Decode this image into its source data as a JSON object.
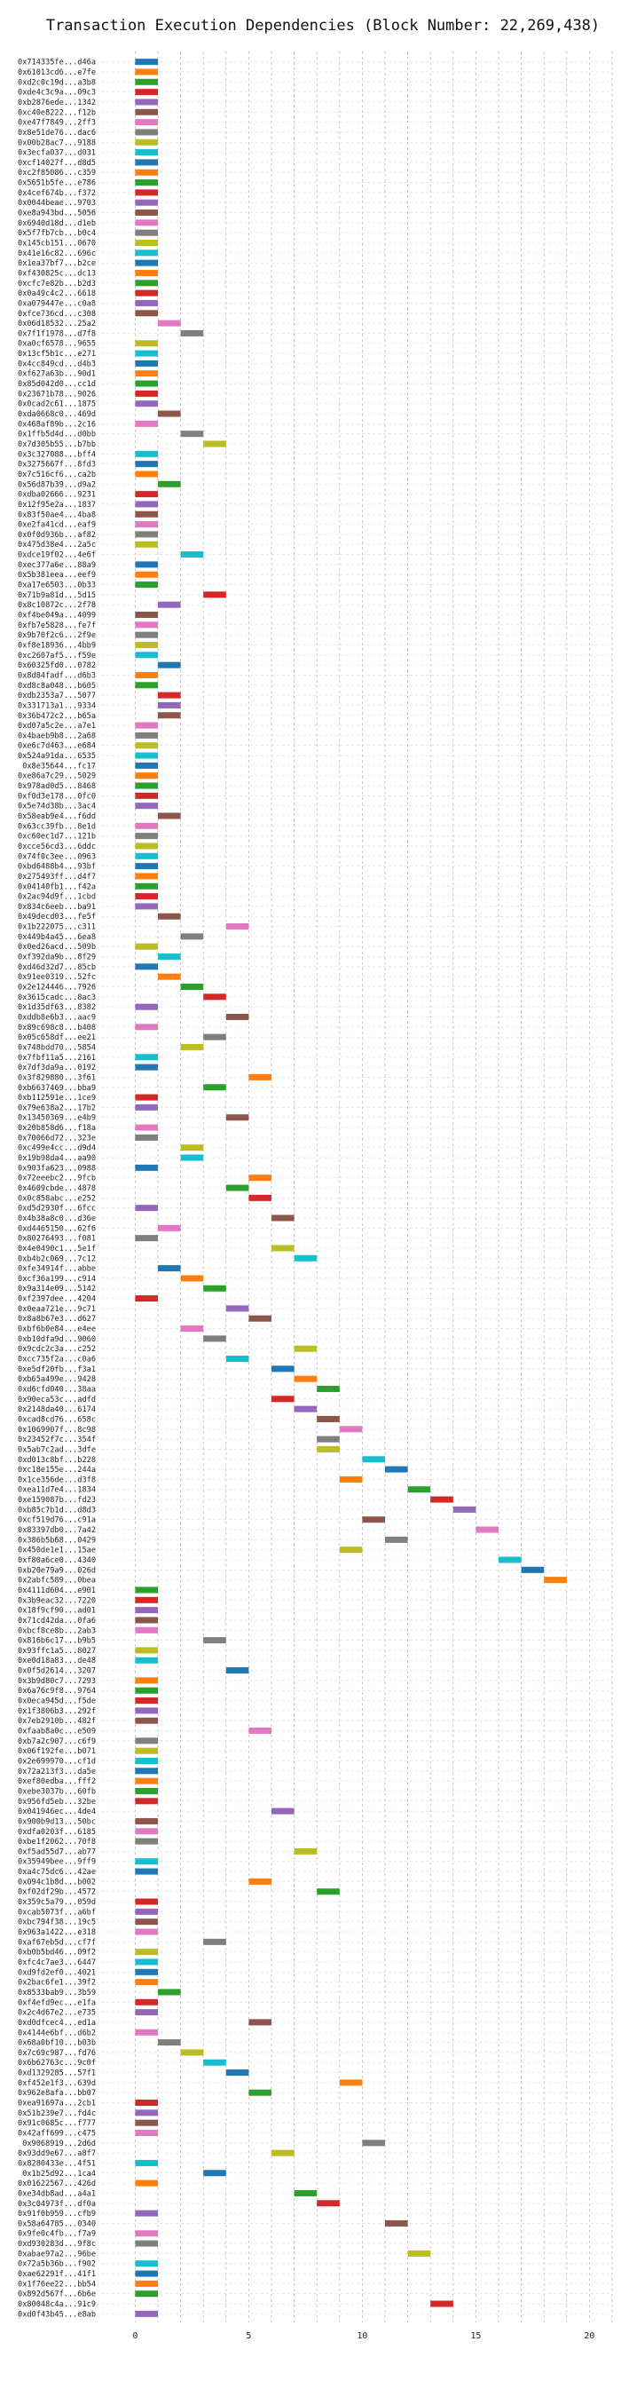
{
  "chart_data": {
    "type": "gantt",
    "title": "Transaction Execution Dependencies (Block Number: 22,269,438)",
    "xlabel": "",
    "ylabel": "",
    "xlim": [
      -1.5,
      21
    ],
    "x_ticks": [
      0,
      5,
      10,
      15,
      20
    ],
    "grid": true,
    "bar_duration": 1,
    "palette": [
      "#1f77b4",
      "#ff7f0e",
      "#2ca02c",
      "#d62728",
      "#9467bd",
      "#8c564b",
      "#e377c2",
      "#7f7f7f",
      "#bcbd22",
      "#17becf"
    ],
    "transactions": [
      {
        "label": "0x714335fe...d46a",
        "start": 0
      },
      {
        "label": "0x61013cd6...e7fe",
        "start": 0
      },
      {
        "label": "0xd2c0c19d...a3b8",
        "start": 0
      },
      {
        "label": "0xde4c3c9a...09c3",
        "start": 0
      },
      {
        "label": "0xb2876ede...1342",
        "start": 0
      },
      {
        "label": "0xc40e8222...f12b",
        "start": 0
      },
      {
        "label": "0xe47f7849...2ff3",
        "start": 0
      },
      {
        "label": "0x8e51de76...dac6",
        "start": 0
      },
      {
        "label": "0x00b28ac7...9188",
        "start": 0
      },
      {
        "label": "0x3ecfa037...d031",
        "start": 0
      },
      {
        "label": "0xcf14027f...d8d5",
        "start": 0
      },
      {
        "label": "0xc2f85086...c359",
        "start": 0
      },
      {
        "label": "0x5651b5fe...e786",
        "start": 0
      },
      {
        "label": "0x4cef674b...f372",
        "start": 0
      },
      {
        "label": "0x0044beae...9703",
        "start": 0
      },
      {
        "label": "0xe8a943bd...5056",
        "start": 0
      },
      {
        "label": "0x6940d18d...d1eb",
        "start": 0
      },
      {
        "label": "0x5f7fb7cb...b0c4",
        "start": 0
      },
      {
        "label": "0x145cb151...0670",
        "start": 0
      },
      {
        "label": "0x41e16c82...696c",
        "start": 0
      },
      {
        "label": "0x1ea37bf7...b2ce",
        "start": 0
      },
      {
        "label": "0xf430825c...dc13",
        "start": 0
      },
      {
        "label": "0xcfc7e82b...b2d3",
        "start": 0
      },
      {
        "label": "0x0a49c4c2...6618",
        "start": 0
      },
      {
        "label": "0xa079447e...c0a8",
        "start": 0
      },
      {
        "label": "0xfce736cd...c308",
        "start": 0
      },
      {
        "label": "0x06d18532...25a2",
        "start": 1
      },
      {
        "label": "0x7f1f1978...d7f8",
        "start": 2
      },
      {
        "label": "0xa0cf6578...9655",
        "start": 0
      },
      {
        "label": "0x13cf5b1c...e271",
        "start": 0
      },
      {
        "label": "0x4cc849cd...d4b3",
        "start": 0
      },
      {
        "label": "0xf627a63b...90d1",
        "start": 0
      },
      {
        "label": "0x85d042d0...cc1d",
        "start": 0
      },
      {
        "label": "0x23671b78...9026",
        "start": 0
      },
      {
        "label": "0x0cad2c61...1875",
        "start": 0
      },
      {
        "label": "0xda0668c0...469d",
        "start": 1
      },
      {
        "label": "0x468af89b...2c16",
        "start": 0
      },
      {
        "label": "0x1ffb5d4d...d0bb",
        "start": 2
      },
      {
        "label": "0x7d305b55...b7bb",
        "start": 3
      },
      {
        "label": "0x3c327088...bff4",
        "start": 0
      },
      {
        "label": "0x3275667f...8fd3",
        "start": 0
      },
      {
        "label": "0x7c516cf6...ca2b",
        "start": 0
      },
      {
        "label": "0x56d87b39...d9a2",
        "start": 1
      },
      {
        "label": "0xdba02666...9231",
        "start": 0
      },
      {
        "label": "0x12f95e2a...1837",
        "start": 0
      },
      {
        "label": "0x83f50ae4...4ba8",
        "start": 0
      },
      {
        "label": "0xe2fa41cd...eaf9",
        "start": 0
      },
      {
        "label": "0x0f0d936b...af82",
        "start": 0
      },
      {
        "label": "0x475d38e4...2a5c",
        "start": 0
      },
      {
        "label": "0xdce19f02...4e6f",
        "start": 2
      },
      {
        "label": "0xec377a6e...88a9",
        "start": 0
      },
      {
        "label": "0x5b381eea...eef9",
        "start": 0
      },
      {
        "label": "0xa17e6503...0b33",
        "start": 0
      },
      {
        "label": "0x71b9a81d...5d15",
        "start": 3
      },
      {
        "label": "0x8c10872c...2f78",
        "start": 1
      },
      {
        "label": "0xf4be049a...4099",
        "start": 0
      },
      {
        "label": "0xfb7e5828...fe7f",
        "start": 0
      },
      {
        "label": "0x9b70f2c6...2f9e",
        "start": 0
      },
      {
        "label": "0xf8e18936...4bb9",
        "start": 0
      },
      {
        "label": "0xc2607af5...f59e",
        "start": 0
      },
      {
        "label": "0x60325fd0...0782",
        "start": 1
      },
      {
        "label": "0x8d84fadf...d6b3",
        "start": 0
      },
      {
        "label": "0xd8c8a048...b605",
        "start": 0
      },
      {
        "label": "0xdb2353a7...5077",
        "start": 1
      },
      {
        "label": "0x331713a1...9334",
        "start": 1
      },
      {
        "label": "0x36b472c2...b65a",
        "start": 1
      },
      {
        "label": "0xd07a5c2e...a7e1",
        "start": 0
      },
      {
        "label": "0x4baeb9b8...2a68",
        "start": 0
      },
      {
        "label": "0xe6c7d463...e684",
        "start": 0
      },
      {
        "label": "0x524a91da...6535",
        "start": 0
      },
      {
        "label": "0x8e35644...fc17",
        "start": 0
      },
      {
        "label": "0xe86a7c29...5029",
        "start": 0
      },
      {
        "label": "0x978ad0d5...8468",
        "start": 0
      },
      {
        "label": "0xf0d3e178...0fc0",
        "start": 0
      },
      {
        "label": "0x5e74d38b...3ac4",
        "start": 0
      },
      {
        "label": "0x58eab9e4...f6dd",
        "start": 1
      },
      {
        "label": "0x63cc39fb...8e1d",
        "start": 0
      },
      {
        "label": "0xc60ec1d7...121b",
        "start": 0
      },
      {
        "label": "0xcce56cd3...6ddc",
        "start": 0
      },
      {
        "label": "0x74f0c3ee...0963",
        "start": 0
      },
      {
        "label": "0xbd6488b4...93bf",
        "start": 0
      },
      {
        "label": "0x275493ff...d4f7",
        "start": 0
      },
      {
        "label": "0x04140fb1...f42a",
        "start": 0
      },
      {
        "label": "0x2ac94d9f...1cbd",
        "start": 0
      },
      {
        "label": "0x834c6eeb...ba91",
        "start": 0
      },
      {
        "label": "0x49decd03...fe5f",
        "start": 1
      },
      {
        "label": "0x1b222075...c311",
        "start": 4
      },
      {
        "label": "0x449b4a45...6ea8",
        "start": 2
      },
      {
        "label": "0x0ed26acd...509b",
        "start": 0
      },
      {
        "label": "0xf392da9b...8f29",
        "start": 1
      },
      {
        "label": "0xd46d32d7...85cb",
        "start": 0
      },
      {
        "label": "0x91ee0319...52fc",
        "start": 1
      },
      {
        "label": "0x2e124446...7926",
        "start": 2
      },
      {
        "label": "0x3615cadc...8ac3",
        "start": 3
      },
      {
        "label": "0x1d35df63...8382",
        "start": 0
      },
      {
        "label": "0xddb8e6b3...aac9",
        "start": 4
      },
      {
        "label": "0x89c698c8...b408",
        "start": 0
      },
      {
        "label": "0x05c658df...ee21",
        "start": 3
      },
      {
        "label": "0x748bdd70...5854",
        "start": 2
      },
      {
        "label": "0x7fbf11a5...2161",
        "start": 0
      },
      {
        "label": "0x7df3da9a...0192",
        "start": 0
      },
      {
        "label": "0x3f829880...3f61",
        "start": 5
      },
      {
        "label": "0xb6637469...bba9",
        "start": 3
      },
      {
        "label": "0xb112591e...1ce9",
        "start": 0
      },
      {
        "label": "0x79e638a2...17b2",
        "start": 0
      },
      {
        "label": "0x13450369...e4b9",
        "start": 4
      },
      {
        "label": "0x20b858d6...f18a",
        "start": 0
      },
      {
        "label": "0x70066d72...323e",
        "start": 0
      },
      {
        "label": "0xc499e4cc...d9d4",
        "start": 2
      },
      {
        "label": "0x19b98da4...aa90",
        "start": 2
      },
      {
        "label": "0x903fa623...0988",
        "start": 0
      },
      {
        "label": "0x72eeebc2...9fcb",
        "start": 5
      },
      {
        "label": "0x4609cbde...4878",
        "start": 4
      },
      {
        "label": "0x0c858abc...e252",
        "start": 5
      },
      {
        "label": "0xd5d2930f...6fcc",
        "start": 0
      },
      {
        "label": "0x4b38a8c0...d36e",
        "start": 6
      },
      {
        "label": "0xd4465150...62f6",
        "start": 1
      },
      {
        "label": "0x80276493...f081",
        "start": 0
      },
      {
        "label": "0x4e0490c1...5e1f",
        "start": 6
      },
      {
        "label": "0xb4b2c069...7c12",
        "start": 7
      },
      {
        "label": "0xfe34914f...abbe",
        "start": 1
      },
      {
        "label": "0xcf36a199...c914",
        "start": 2
      },
      {
        "label": "0x9a314e09...5142",
        "start": 3
      },
      {
        "label": "0xf2397dee...4204",
        "start": 0
      },
      {
        "label": "0x0eaa721e...9c71",
        "start": 4
      },
      {
        "label": "0x8a8b67e3...d627",
        "start": 5
      },
      {
        "label": "0xbf6b0e84...e4ee",
        "start": 2
      },
      {
        "label": "0xb10dfa9d...9060",
        "start": 3
      },
      {
        "label": "0x9cdc2c3a...c252",
        "start": 7
      },
      {
        "label": "0xcc735f2a...c0a6",
        "start": 4
      },
      {
        "label": "0xe5df20fb...f3a1",
        "start": 6
      },
      {
        "label": "0xb65a499e...9428",
        "start": 7
      },
      {
        "label": "0xd6cfd040...38aa",
        "start": 8
      },
      {
        "label": "0x90eca53c...adfd",
        "start": 6
      },
      {
        "label": "0x2148da40...6174",
        "start": 7
      },
      {
        "label": "0xcad8cd76...658c",
        "start": 8
      },
      {
        "label": "0x1069907f...8c98",
        "start": 9
      },
      {
        "label": "0x23452f7c...354f",
        "start": 8
      },
      {
        "label": "0x5ab7c2ad...3dfe",
        "start": 8
      },
      {
        "label": "0xd013c8bf...b228",
        "start": 10
      },
      {
        "label": "0xc18e155e...244a",
        "start": 11
      },
      {
        "label": "0x1ce356de...d3f8",
        "start": 9
      },
      {
        "label": "0xea11d7e4...1834",
        "start": 12
      },
      {
        "label": "0xe159087b...fd23",
        "start": 13
      },
      {
        "label": "0xb85c7b1d...d8d3",
        "start": 14
      },
      {
        "label": "0xcf519d76...c91a",
        "start": 10
      },
      {
        "label": "0x83397db0...7a42",
        "start": 15
      },
      {
        "label": "0x386b5b68...0429",
        "start": 11
      },
      {
        "label": "0x450de1e1...15ae",
        "start": 9
      },
      {
        "label": "0xf80a6ce0...4340",
        "start": 16
      },
      {
        "label": "0xb20e79a9...026d",
        "start": 17
      },
      {
        "label": "0x2abfc589...0bea",
        "start": 18
      },
      {
        "label": "0x4111d604...e901",
        "start": 0
      },
      {
        "label": "0x3b9eac32...7220",
        "start": 0
      },
      {
        "label": "0x18f9cf90...ad01",
        "start": 0
      },
      {
        "label": "0x71cd42da...0fa6",
        "start": 0
      },
      {
        "label": "0xbcf8ce8b...2ab3",
        "start": 0
      },
      {
        "label": "0x816b6c17...b9b5",
        "start": 3
      },
      {
        "label": "0x93ffc1a5...8027",
        "start": 0
      },
      {
        "label": "0xe0d18a83...de48",
        "start": 0
      },
      {
        "label": "0x0f5d2614...3207",
        "start": 4
      },
      {
        "label": "0x3b9d80c7...7293",
        "start": 0
      },
      {
        "label": "0x6a76c9f8...9764",
        "start": 0
      },
      {
        "label": "0x0eca945d...f5de",
        "start": 0
      },
      {
        "label": "0x1f3806b3...292f",
        "start": 0
      },
      {
        "label": "0x7eb2910b...482f",
        "start": 0
      },
      {
        "label": "0xfaab8a0c...e509",
        "start": 5
      },
      {
        "label": "0xb7a2c907...c6f9",
        "start": 0
      },
      {
        "label": "0x06f192fe...b071",
        "start": 0
      },
      {
        "label": "0x2e699970...cf1d",
        "start": 0
      },
      {
        "label": "0x72a213f3...da5e",
        "start": 0
      },
      {
        "label": "0xef80edba...fff2",
        "start": 0
      },
      {
        "label": "0xebe3037b...60fb",
        "start": 0
      },
      {
        "label": "0x956fd5eb...32be",
        "start": 0
      },
      {
        "label": "0x041946ec...4de4",
        "start": 6
      },
      {
        "label": "0x900b9d13...50bc",
        "start": 0
      },
      {
        "label": "0xdfa0203f...6185",
        "start": 0
      },
      {
        "label": "0xbe1f2062...70f8",
        "start": 0
      },
      {
        "label": "0xf5ad55d7...ab77",
        "start": 7
      },
      {
        "label": "0x35949bee...9ff9",
        "start": 0
      },
      {
        "label": "0xa4c75dc6...42ae",
        "start": 0
      },
      {
        "label": "0x094c1b8d...b002",
        "start": 5
      },
      {
        "label": "0xf02df29b...4572",
        "start": 8
      },
      {
        "label": "0x359c5a79...059d",
        "start": 0
      },
      {
        "label": "0xcab5073f...a6bf",
        "start": 0
      },
      {
        "label": "0xbc794f38...19c5",
        "start": 0
      },
      {
        "label": "0x963a1422...e318",
        "start": 0
      },
      {
        "label": "0xaf67eb5d...cf7f",
        "start": 3
      },
      {
        "label": "0xb0b5bd46...09f2",
        "start": 0
      },
      {
        "label": "0xfc4c7ae3...6447",
        "start": 0
      },
      {
        "label": "0xd9fd2ef0...4021",
        "start": 0
      },
      {
        "label": "0x2bac6fe1...39f2",
        "start": 0
      },
      {
        "label": "0x8533bab9...3b59",
        "start": 1
      },
      {
        "label": "0xf4efd9ec...e1fa",
        "start": 0
      },
      {
        "label": "0x2c4d67e2...e735",
        "start": 0
      },
      {
        "label": "0xd0dfcec4...ed1a",
        "start": 5
      },
      {
        "label": "0x4144e6bf...d6b2",
        "start": 0
      },
      {
        "label": "0x68a0bf10...b03b",
        "start": 1
      },
      {
        "label": "0x7c69c987...fd76",
        "start": 2
      },
      {
        "label": "0x6b62763c...9c0f",
        "start": 3
      },
      {
        "label": "0xd1329285...57f1",
        "start": 4
      },
      {
        "label": "0xf452e1f3...639d",
        "start": 9
      },
      {
        "label": "0x962e8afa...bb07",
        "start": 5
      },
      {
        "label": "0xea91697a...2cb1",
        "start": 0
      },
      {
        "label": "0x51b239e7...fd4c",
        "start": 0
      },
      {
        "label": "0x91c0685c...f777",
        "start": 0
      },
      {
        "label": "0x42aff699...c475",
        "start": 0
      },
      {
        "label": "0x9068919...2d6d",
        "start": 10
      },
      {
        "label": "0x93dd9e67...a8f7",
        "start": 6
      },
      {
        "label": "0x8280433e...4f51",
        "start": 0
      },
      {
        "label": "0x1b25d92...1ca4",
        "start": 3
      },
      {
        "label": "0x01622567...426d",
        "start": 0
      },
      {
        "label": "0xe34db8ad...a4a1",
        "start": 7
      },
      {
        "label": "0x3c04973f...df0a",
        "start": 8
      },
      {
        "label": "0x91f0b959...cfb9",
        "start": 0
      },
      {
        "label": "0x58a64785...0340",
        "start": 11
      },
      {
        "label": "0x9fe0c4fb...f7a9",
        "start": 0
      },
      {
        "label": "0xd930283d...9f8c",
        "start": 0
      },
      {
        "label": "0xabae97a2...96be",
        "start": 12
      },
      {
        "label": "0x72a5b36b...f902",
        "start": 0
      },
      {
        "label": "0xae62291f...41f1",
        "start": 0
      },
      {
        "label": "0x1f76ee22...bb54",
        "start": 0
      },
      {
        "label": "0x892d567f...6b6e",
        "start": 0
      },
      {
        "label": "0x80048c4a...91c9",
        "start": 13
      },
      {
        "label": "0xd0f43b45...e8ab",
        "start": 0
      }
    ]
  }
}
